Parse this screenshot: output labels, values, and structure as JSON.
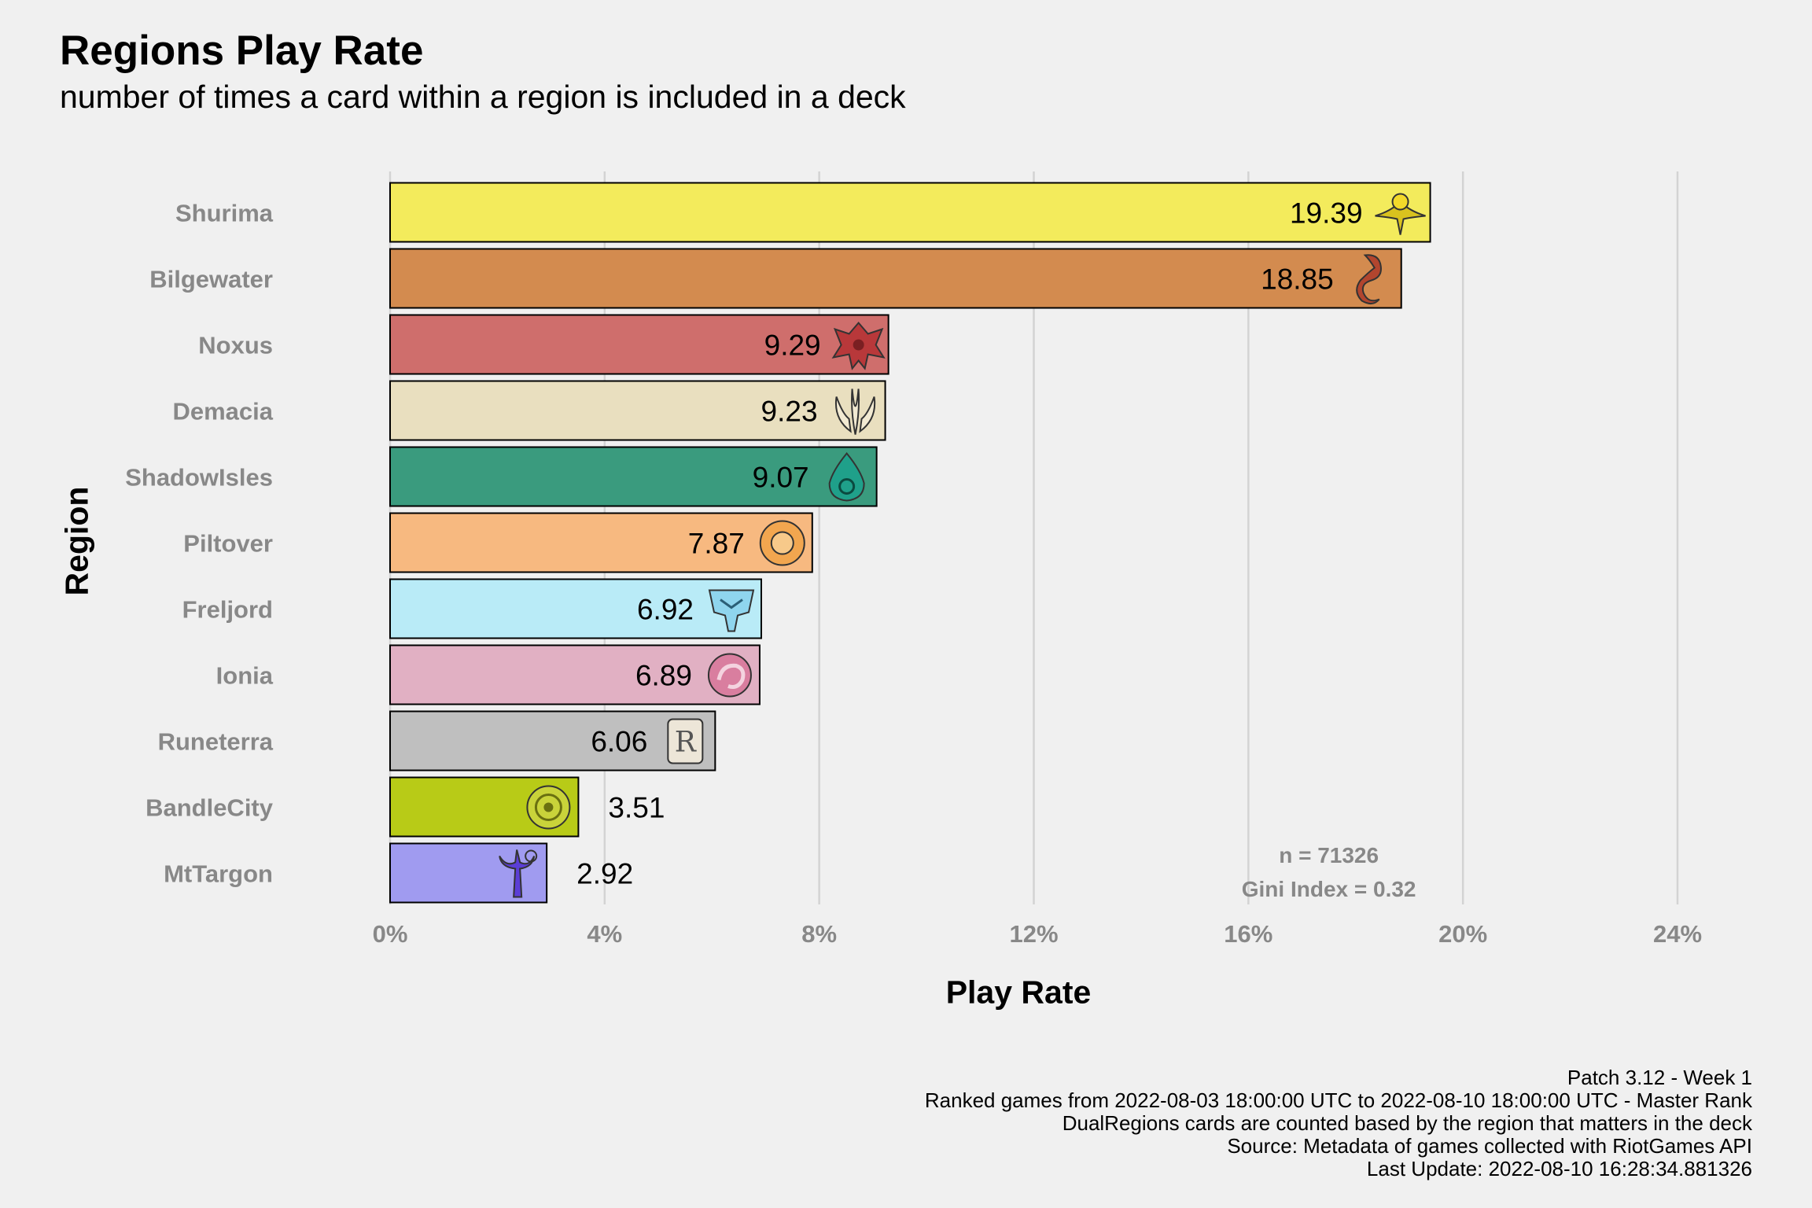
{
  "chart_data": {
    "type": "bar",
    "orientation": "horizontal",
    "title": "Regions Play Rate",
    "subtitle": "number of times a card within a region is included in a deck",
    "xlabel": "Play Rate",
    "ylabel": "Region",
    "xlim": [
      0,
      24
    ],
    "xticks": [
      0,
      4,
      8,
      12,
      16,
      20,
      24
    ],
    "xtick_labels": [
      "0%",
      "4%",
      "8%",
      "12%",
      "16%",
      "20%",
      "24%"
    ],
    "grid": "vertical major",
    "legend": "none",
    "categories": [
      "Shurima",
      "Bilgewater",
      "Noxus",
      "Demacia",
      "ShadowIsles",
      "Piltover",
      "Freljord",
      "Ionia",
      "Runeterra",
      "BandleCity",
      "MtTargon"
    ],
    "values": [
      19.39,
      18.85,
      9.29,
      9.23,
      9.07,
      7.87,
      6.92,
      6.89,
      6.06,
      3.51,
      2.92
    ],
    "value_labels": [
      "19.39",
      "18.85",
      "9.29",
      "9.23",
      "9.07",
      "7.87",
      "6.92",
      "6.89",
      "6.06",
      "3.51",
      "2.92"
    ],
    "colors": [
      "#f3eb5c",
      "#d38b4f",
      "#cf6e6c",
      "#e9dfbf",
      "#3a9b7e",
      "#f7b980",
      "#b9ebf7",
      "#e1b0c3",
      "#bfbfbf",
      "#b8cb17",
      "#a09bf0"
    ],
    "icons": [
      "shurima-icon",
      "bilgewater-icon",
      "noxus-icon",
      "demacia-icon",
      "shadowisles-icon",
      "piltover-icon",
      "freljord-icon",
      "ionia-icon",
      "runeterra-icon",
      "bandlecity-icon",
      "mttargon-icon"
    ],
    "annotations": [
      "n = 71326",
      "Gini Index = 0.32"
    ],
    "annotation_position_value": 17.5,
    "caption": [
      "Patch 3.12 - Week 1",
      "Ranked games from 2022-08-03 18:00:00 UTC to 2022-08-10 18:00:00 UTC - Master Rank",
      "DualRegions cards are counted based by the region that matters in the deck",
      "Source: Metadata of games collected with RiotGames API",
      "Last Update: 2022-08-10 16:28:34.881326"
    ]
  }
}
